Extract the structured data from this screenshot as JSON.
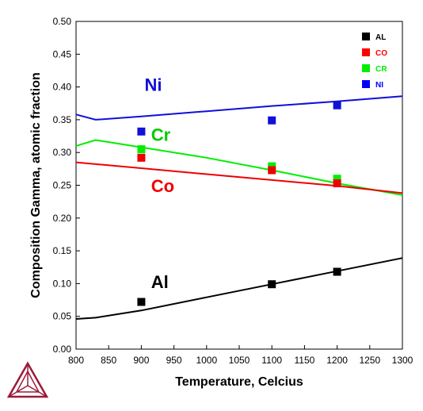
{
  "chart_data": {
    "type": "line",
    "xlabel": "Temperature, Celcius",
    "ylabel": "Composition Gamma, atomic fraction",
    "xlim": [
      800,
      1300
    ],
    "ylim": [
      0,
      0.5
    ],
    "x_ticks": [
      "800",
      "850",
      "900",
      "950",
      "1000",
      "1050",
      "1100",
      "1150",
      "1200",
      "1250",
      "1300"
    ],
    "y_ticks": [
      "0.00",
      "0.05",
      "0.10",
      "0.15",
      "0.20",
      "0.25",
      "0.30",
      "0.35",
      "0.40",
      "0.45",
      "0.50"
    ],
    "legend_position": "top-right",
    "legend": [
      {
        "label": "AL",
        "color": "#000000"
      },
      {
        "label": "CO",
        "color": "#ff0000"
      },
      {
        "label": "CR",
        "color": "#00ee00"
      },
      {
        "label": "NI",
        "color": "#0000ff"
      }
    ],
    "series": [
      {
        "name": "Ni",
        "color": "#1010d8",
        "line": [
          [
            800,
            0.358
          ],
          [
            830,
            0.35
          ],
          [
            900,
            0.355
          ],
          [
            1000,
            0.363
          ],
          [
            1100,
            0.371
          ],
          [
            1200,
            0.378
          ],
          [
            1300,
            0.386
          ]
        ],
        "points": [
          [
            900,
            0.332
          ],
          [
            1100,
            0.349
          ],
          [
            1200,
            0.372
          ]
        ]
      },
      {
        "name": "Cr",
        "color": "#00ee00",
        "line": [
          [
            800,
            0.31
          ],
          [
            830,
            0.319
          ],
          [
            900,
            0.308
          ],
          [
            1000,
            0.292
          ],
          [
            1100,
            0.273
          ],
          [
            1200,
            0.253
          ],
          [
            1300,
            0.235
          ]
        ],
        "points": [
          [
            900,
            0.305
          ],
          [
            1100,
            0.279
          ],
          [
            1200,
            0.26
          ]
        ]
      },
      {
        "name": "Co",
        "color": "#ee0000",
        "line": [
          [
            800,
            0.285
          ],
          [
            900,
            0.276
          ],
          [
            1000,
            0.267
          ],
          [
            1100,
            0.258
          ],
          [
            1200,
            0.249
          ],
          [
            1300,
            0.238
          ]
        ],
        "points": [
          [
            900,
            0.292
          ],
          [
            1100,
            0.273
          ],
          [
            1200,
            0.253
          ]
        ]
      },
      {
        "name": "Al",
        "color": "#000000",
        "line": [
          [
            800,
            0.046
          ],
          [
            830,
            0.048
          ],
          [
            900,
            0.059
          ],
          [
            1000,
            0.079
          ],
          [
            1100,
            0.099
          ],
          [
            1200,
            0.119
          ],
          [
            1300,
            0.139
          ]
        ],
        "points": [
          [
            900,
            0.072
          ],
          [
            1100,
            0.099
          ],
          [
            1200,
            0.118
          ]
        ]
      }
    ],
    "annotations": [
      {
        "text": "Ni",
        "x": 905,
        "y": 0.394,
        "color": "#1010d8"
      },
      {
        "text": "Cr",
        "x": 915,
        "y": 0.318,
        "color": "#00cc00"
      },
      {
        "text": "Co",
        "x": 915,
        "y": 0.24,
        "color": "#ee0000"
      },
      {
        "text": "Al",
        "x": 915,
        "y": 0.093,
        "color": "#000000"
      }
    ]
  }
}
